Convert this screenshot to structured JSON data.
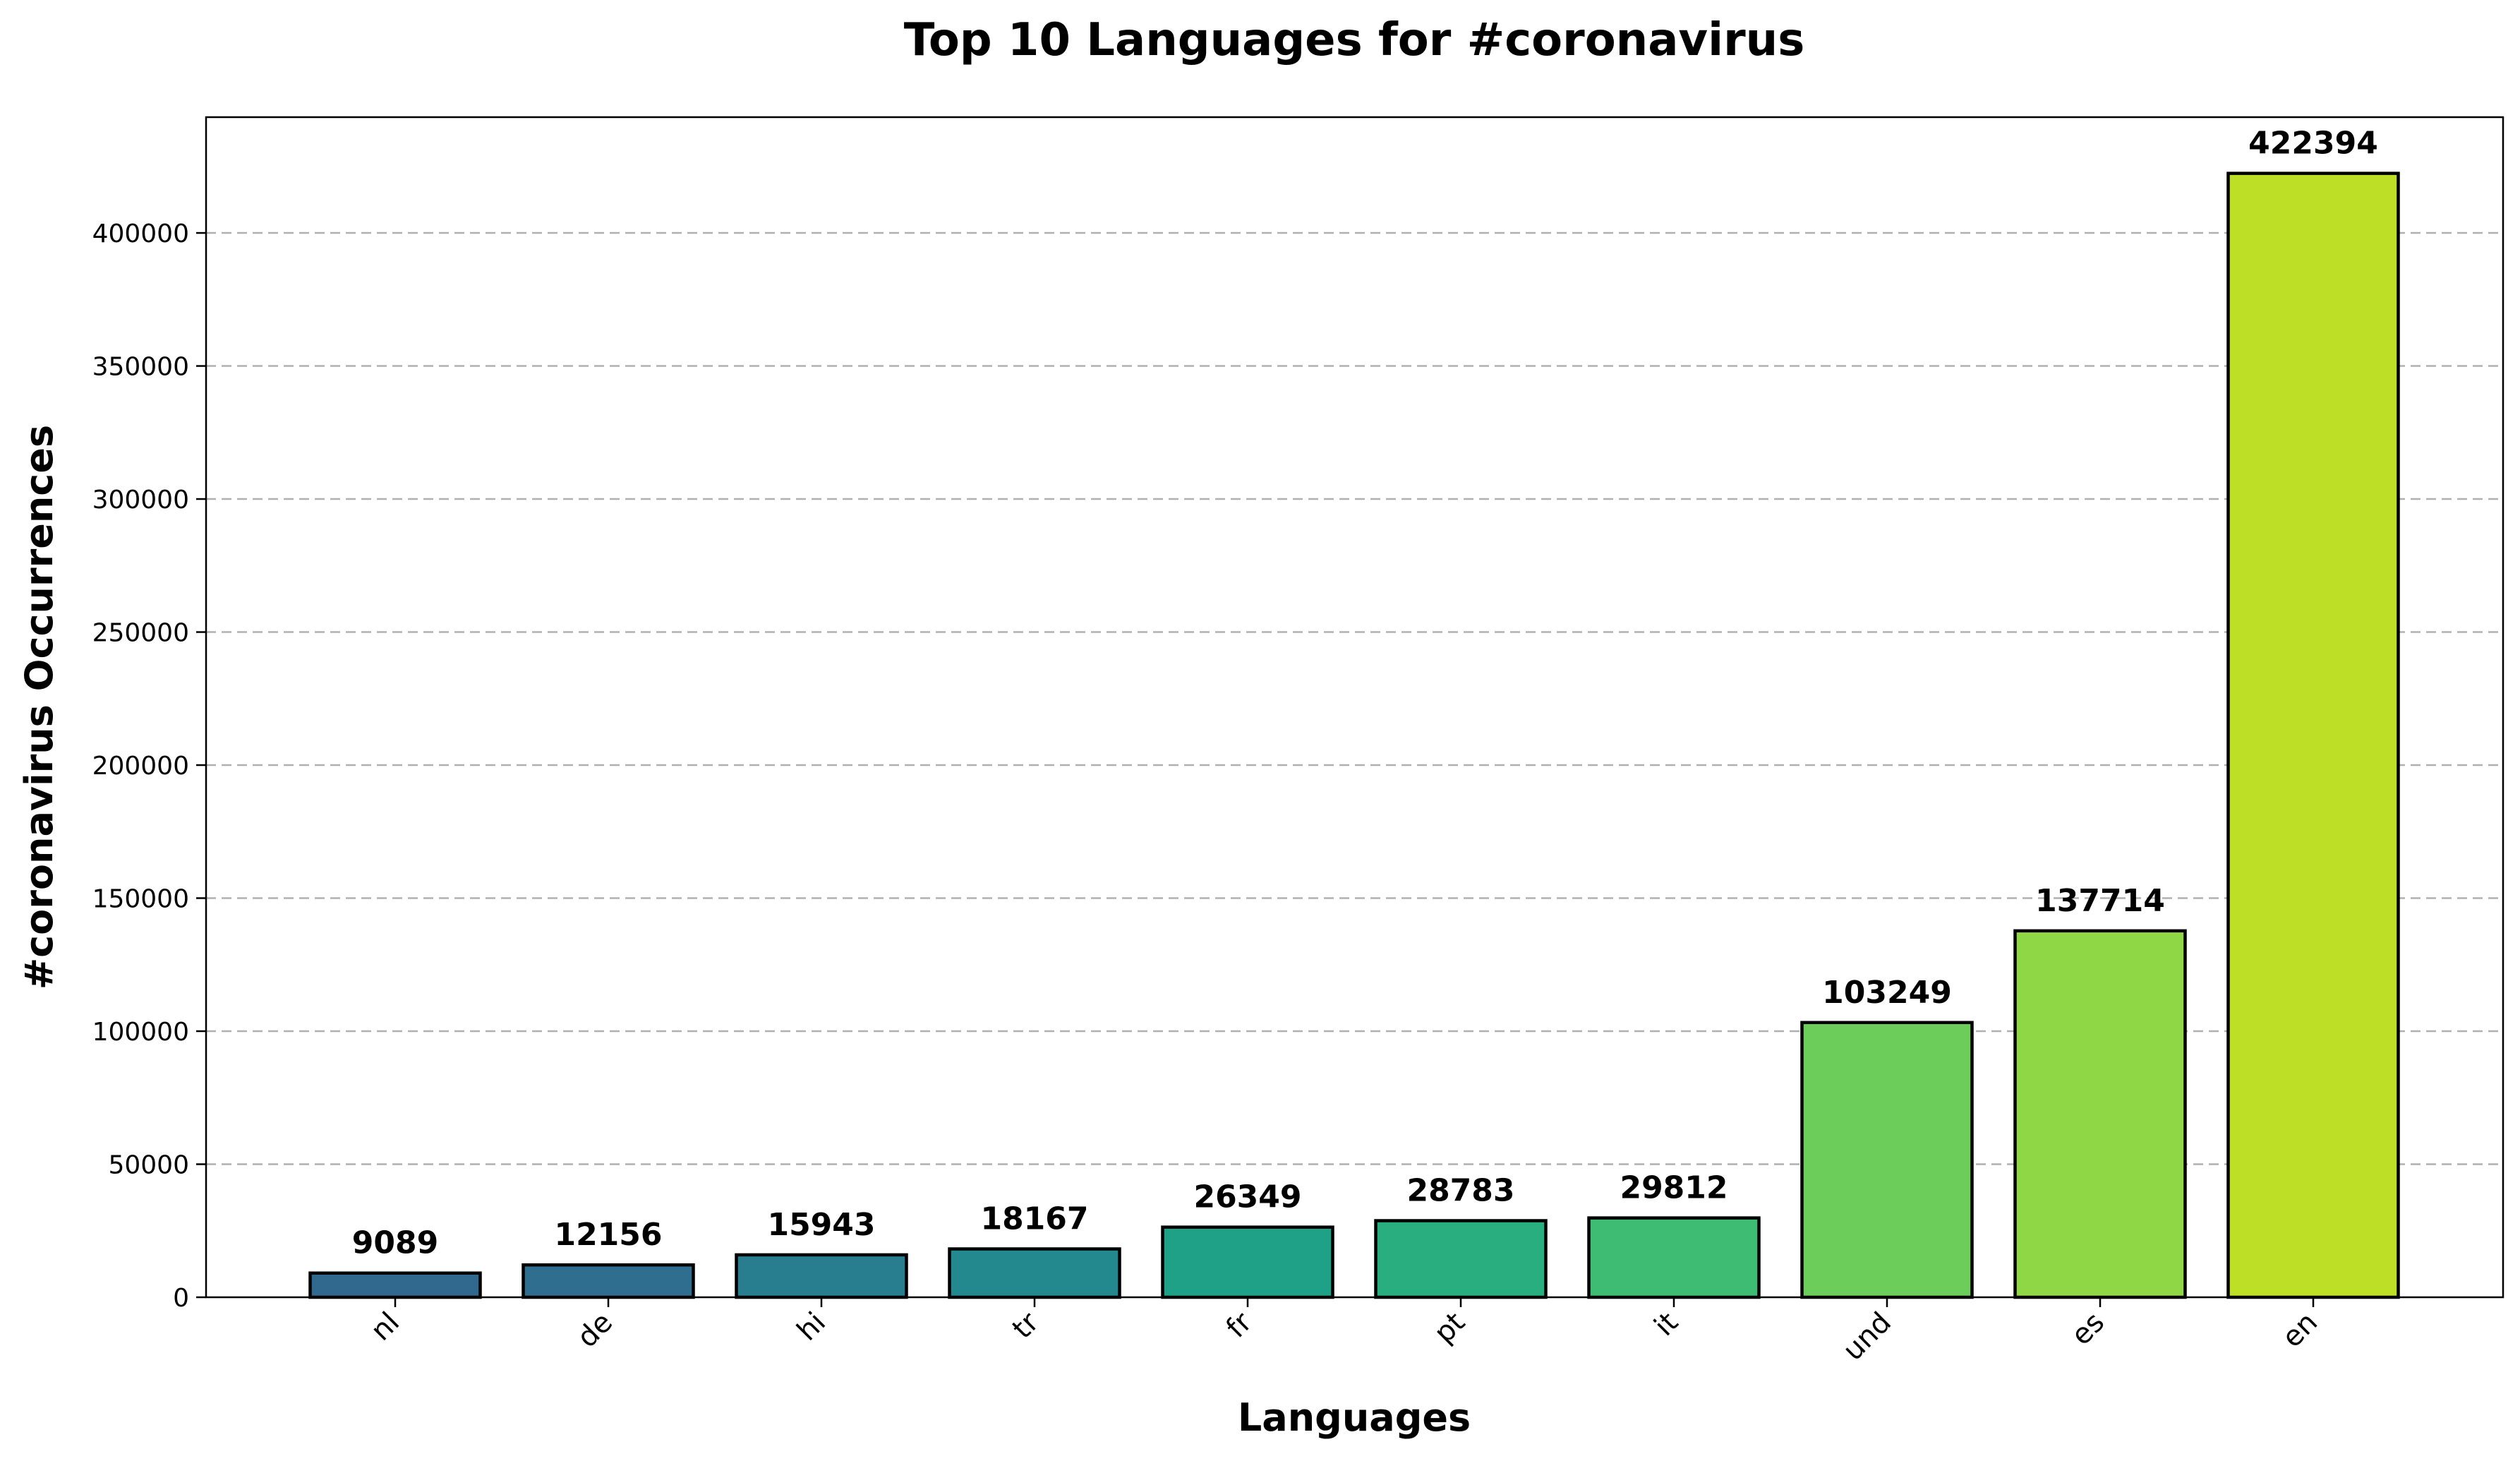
{
  "chart_data": {
    "type": "bar",
    "title": "Top 10 Languages for #coronavirus",
    "xlabel": "Languages",
    "ylabel": "#coronavirus Occurrences",
    "categories": [
      "nl",
      "de",
      "hi",
      "tr",
      "fr",
      "pt",
      "it",
      "und",
      "es",
      "en"
    ],
    "values": [
      9089,
      12156,
      15943,
      18167,
      26349,
      28783,
      29812,
      103249,
      137714,
      422394
    ],
    "colors": [
      "#31688e",
      "#2f6e8e",
      "#287d8e",
      "#23898e",
      "#1fa187",
      "#29af7f",
      "#3fbc73",
      "#6ccd5a",
      "#8fd744",
      "#bddf26"
    ],
    "ylim": [
      0,
      443514
    ],
    "yticks": [
      0,
      50000,
      100000,
      150000,
      200000,
      250000,
      300000,
      350000,
      400000
    ],
    "ytick_labels": [
      "0",
      "50000",
      "100000",
      "150000",
      "200000",
      "250000",
      "300000",
      "350000",
      "400000"
    ],
    "grid": "y-dashed",
    "legend": "none"
  }
}
